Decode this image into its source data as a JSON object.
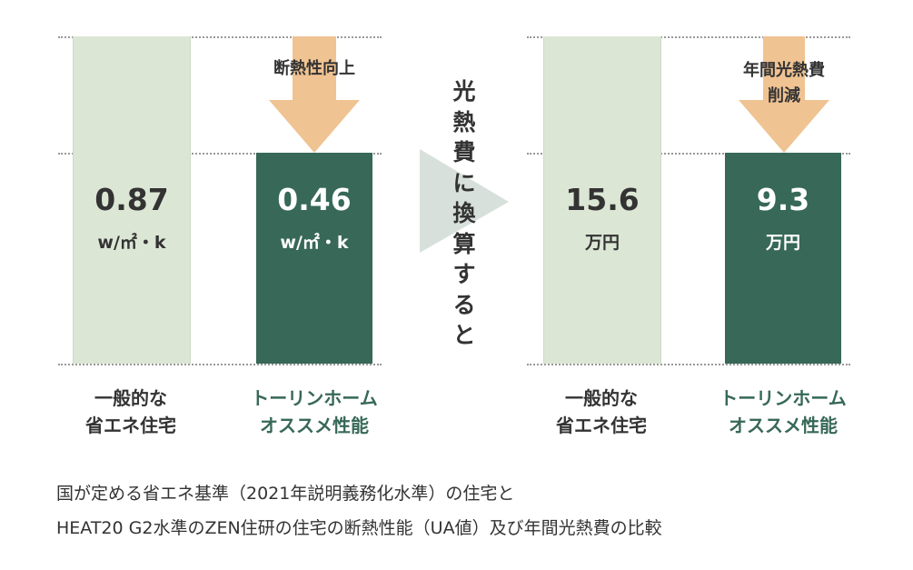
{
  "chart_data": [
    {
      "type": "bar",
      "title": "断熱性能 (UA値)",
      "categories": [
        "一般的な省エネ住宅",
        "トーリンホーム オススメ性能"
      ],
      "values": [
        0.87,
        0.46
      ],
      "value_labels": [
        "0.87",
        "0.46"
      ],
      "unit": "w/㎡・k",
      "arrow_label": "断熱性向上"
    },
    {
      "type": "bar",
      "title": "年間光熱費",
      "categories": [
        "一般的な省エネ住宅",
        "トーリンホーム オススメ性能"
      ],
      "values": [
        15.6,
        9.3
      ],
      "value_labels": [
        "15.6",
        "9.3"
      ],
      "unit": "万円",
      "arrow_label_lines": [
        "年間光熱費",
        "削減"
      ]
    }
  ],
  "labels": {
    "general_line1": "一般的な",
    "general_line2": "省エネ住宅",
    "torin_line1": "トーリンホーム",
    "torin_line2": "オススメ性能"
  },
  "convert_text": [
    "光",
    "熱",
    "費",
    "に",
    "換",
    "算",
    "す",
    "る",
    "と"
  ],
  "caption": [
    "国が定める省エネ基準（2021年説明義務化水準）の住宅と",
    "HEAT20 G2水準のZEN住研の住宅の断熱性能（UA値）及び年間光熱費の比較"
  ],
  "colors": {
    "light_bar": "#dce6d5",
    "dark_bar": "#376858",
    "arrow": "#f0c392",
    "convert_triangle": "#d8e0dc",
    "accent_text": "#376858"
  }
}
